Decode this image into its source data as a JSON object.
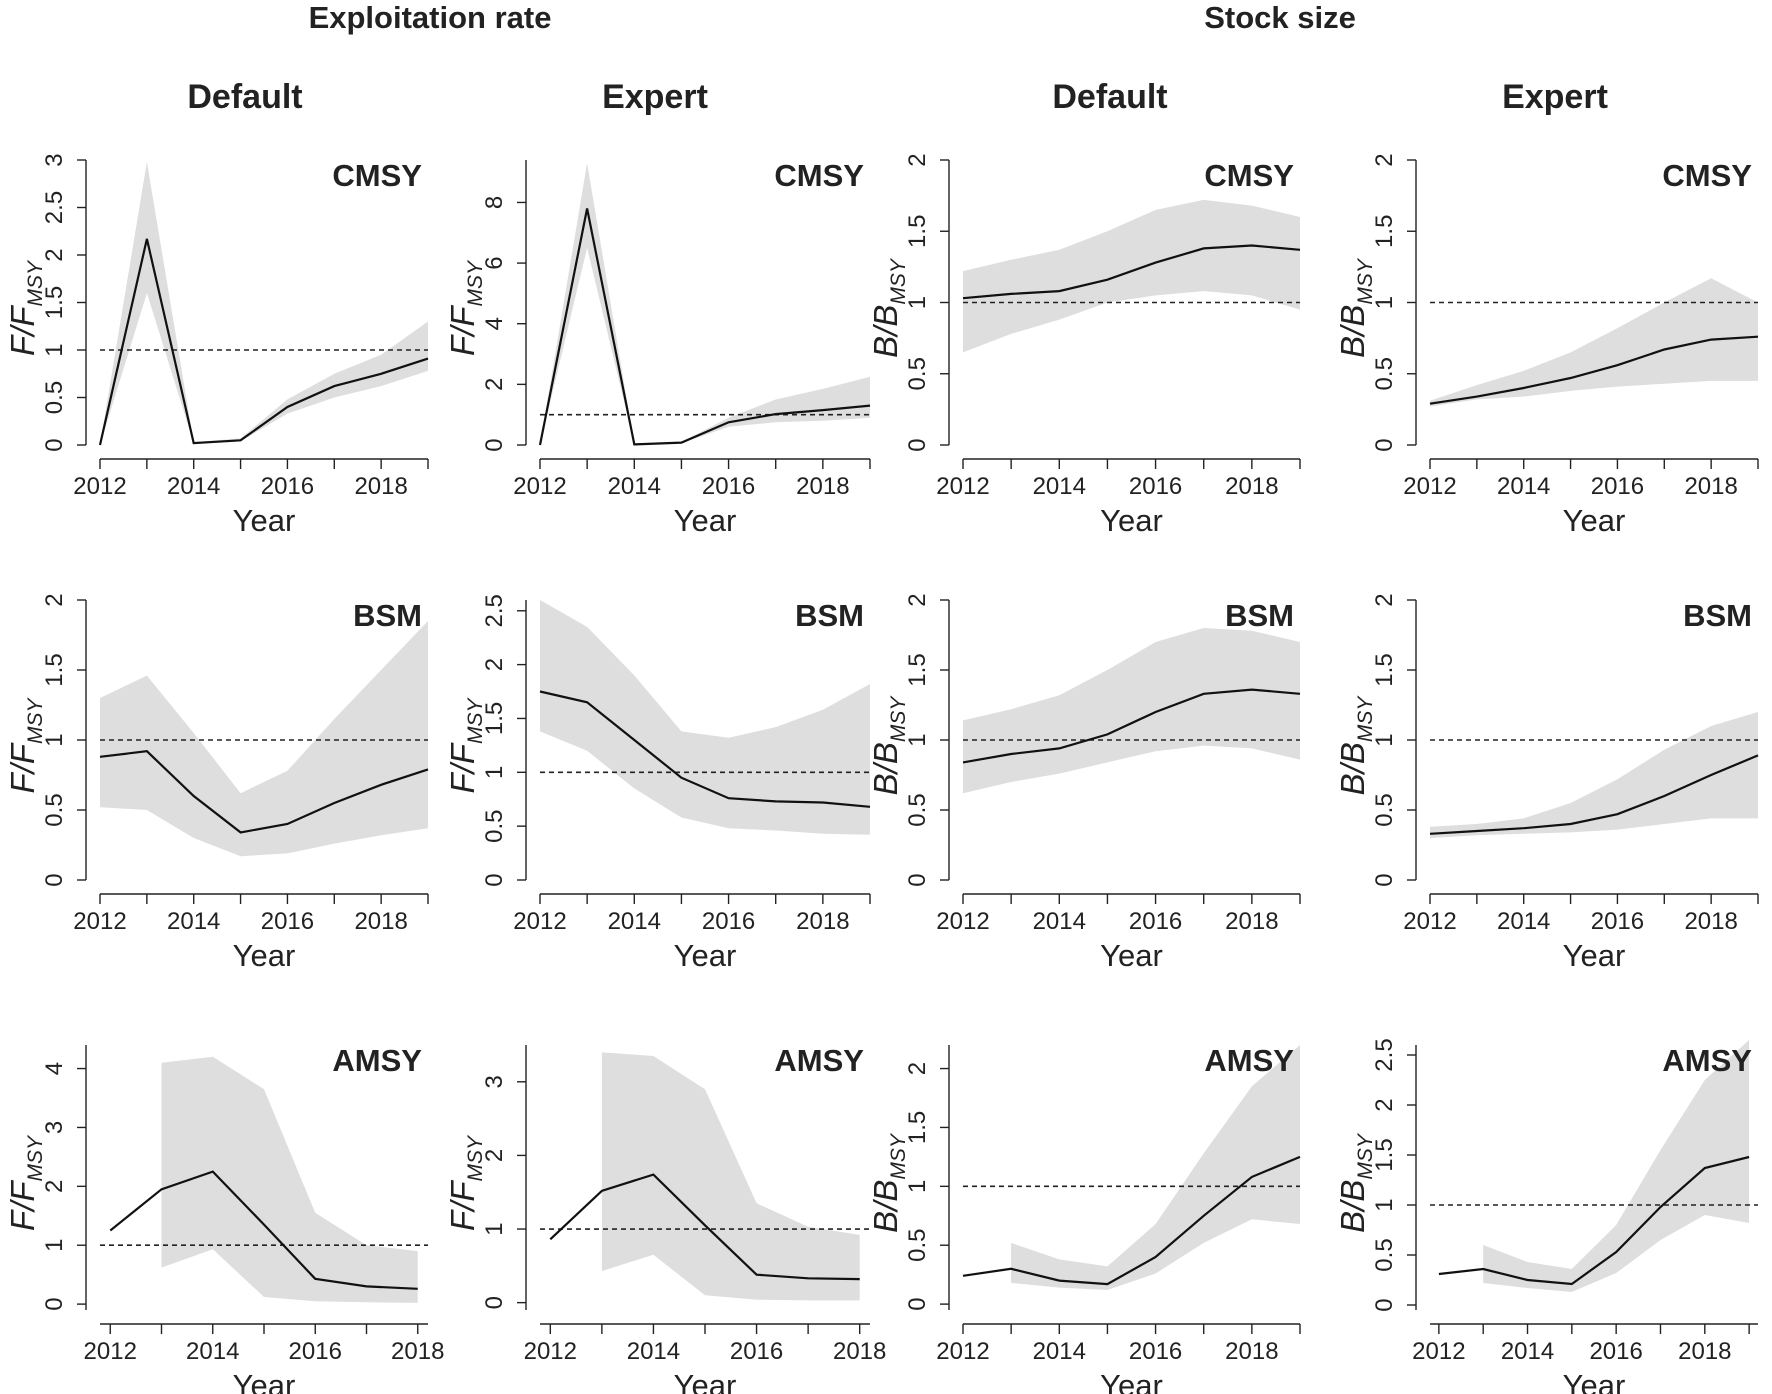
{
  "figure": {
    "section_titles": [
      "Exploitation rate",
      "Stock size"
    ],
    "column_titles": [
      "Default",
      "Expert",
      "Default",
      "Expert"
    ]
  },
  "chart_data": [
    {
      "type": "line",
      "section": "Exploitation rate",
      "column": "Default",
      "model": "CMSY",
      "ylabel": "F/F_MSY",
      "ylabel_main": "F/F",
      "ylabel_sub": "MSY",
      "xlabel": "Year",
      "xlim": [
        2012,
        2019
      ],
      "xticks": [
        2012,
        2014,
        2016,
        2018
      ],
      "ylim": [
        0,
        3
      ],
      "yticks": [
        "0",
        "0.5",
        "1",
        "1.5",
        "2",
        "2.5",
        "3"
      ],
      "reference_line": 1,
      "x": [
        2012,
        2013,
        2014,
        2015,
        2016,
        2017,
        2018,
        2019
      ],
      "median": [
        0.0,
        2.17,
        0.02,
        0.05,
        0.4,
        0.62,
        0.75,
        0.91
      ],
      "lower": [
        0.0,
        1.6,
        0.02,
        0.04,
        0.33,
        0.5,
        0.62,
        0.78
      ],
      "upper": [
        0.0,
        2.98,
        0.03,
        0.07,
        0.48,
        0.75,
        0.95,
        1.3
      ]
    },
    {
      "type": "line",
      "section": "Exploitation rate",
      "column": "Expert",
      "model": "CMSY",
      "ylabel": "F/F_MSY",
      "ylabel_main": "F/F",
      "ylabel_sub": "MSY",
      "xlabel": "Year",
      "xlim": [
        2012,
        2019
      ],
      "xticks": [
        2012,
        2014,
        2016,
        2018
      ],
      "ylim": [
        0,
        9.4
      ],
      "yticks": [
        "0",
        "2",
        "4",
        "6",
        "8"
      ],
      "reference_line": 1,
      "x": [
        2012,
        2013,
        2014,
        2015,
        2016,
        2017,
        2018,
        2019
      ],
      "median": [
        0.0,
        7.8,
        0.02,
        0.08,
        0.75,
        1.02,
        1.15,
        1.3
      ],
      "lower": [
        0.0,
        6.5,
        0.02,
        0.06,
        0.6,
        0.75,
        0.8,
        0.9
      ],
      "upper": [
        0.0,
        9.3,
        0.03,
        0.1,
        0.9,
        1.5,
        1.85,
        2.25
      ]
    },
    {
      "type": "line",
      "section": "Stock size",
      "column": "Default",
      "model": "CMSY",
      "ylabel": "B/B_MSY",
      "ylabel_main": "B/B",
      "ylabel_sub": "MSY",
      "xlabel": "Year",
      "xlim": [
        2012,
        2019
      ],
      "xticks": [
        2012,
        2014,
        2016,
        2018
      ],
      "ylim": [
        0,
        2
      ],
      "yticks": [
        "0",
        "0.5",
        "1",
        "1.5",
        "2"
      ],
      "reference_line": 1,
      "x": [
        2012,
        2013,
        2014,
        2015,
        2016,
        2017,
        2018,
        2019
      ],
      "median": [
        1.03,
        1.06,
        1.08,
        1.16,
        1.28,
        1.38,
        1.4,
        1.37
      ],
      "lower": [
        0.65,
        0.78,
        0.88,
        1.0,
        1.05,
        1.08,
        1.05,
        0.95
      ],
      "upper": [
        1.22,
        1.3,
        1.37,
        1.5,
        1.65,
        1.72,
        1.68,
        1.6
      ]
    },
    {
      "type": "line",
      "section": "Stock size",
      "column": "Expert",
      "model": "CMSY",
      "ylabel": "B/B_MSY",
      "ylabel_main": "B/B",
      "ylabel_sub": "MSY",
      "xlabel": "Year",
      "xlim": [
        2012,
        2019
      ],
      "xticks": [
        2012,
        2014,
        2016,
        2018
      ],
      "ylim": [
        0,
        2
      ],
      "yticks": [
        "0",
        "0.5",
        "1",
        "1.5",
        "2"
      ],
      "reference_line": 1,
      "x": [
        2012,
        2013,
        2014,
        2015,
        2016,
        2017,
        2018,
        2019
      ],
      "median": [
        0.29,
        0.34,
        0.4,
        0.47,
        0.56,
        0.67,
        0.74,
        0.76
      ],
      "lower": [
        0.27,
        0.32,
        0.34,
        0.38,
        0.41,
        0.43,
        0.45,
        0.45
      ],
      "upper": [
        0.31,
        0.42,
        0.52,
        0.65,
        0.82,
        1.0,
        1.17,
        1.0
      ]
    },
    {
      "type": "line",
      "section": "Exploitation rate",
      "column": "Default",
      "model": "BSM",
      "ylabel": "F/F_MSY",
      "ylabel_main": "F/F",
      "ylabel_sub": "MSY",
      "xlabel": "Year",
      "xlim": [
        2012,
        2019
      ],
      "xticks": [
        2012,
        2014,
        2016,
        2018
      ],
      "ylim": [
        0,
        2
      ],
      "yticks": [
        "0",
        "0.5",
        "1",
        "1.5",
        "2"
      ],
      "reference_line": 1,
      "x": [
        2012,
        2013,
        2014,
        2015,
        2016,
        2017,
        2018,
        2019
      ],
      "median": [
        0.88,
        0.92,
        0.6,
        0.34,
        0.4,
        0.55,
        0.68,
        0.79
      ],
      "lower": [
        0.52,
        0.5,
        0.3,
        0.17,
        0.19,
        0.26,
        0.32,
        0.37
      ],
      "upper": [
        1.3,
        1.46,
        1.05,
        0.62,
        0.78,
        1.15,
        1.5,
        1.85
      ]
    },
    {
      "type": "line",
      "section": "Exploitation rate",
      "column": "Expert",
      "model": "BSM",
      "ylabel": "F/F_MSY",
      "ylabel_main": "F/F",
      "ylabel_sub": "MSY",
      "xlabel": "Year",
      "xlim": [
        2012,
        2019
      ],
      "xticks": [
        2012,
        2014,
        2016,
        2018
      ],
      "ylim": [
        0,
        2.6
      ],
      "yticks": [
        "0",
        "0.5",
        "1",
        "1.5",
        "2",
        "2.5"
      ],
      "reference_line": 1,
      "x": [
        2012,
        2013,
        2014,
        2015,
        2016,
        2017,
        2018,
        2019
      ],
      "median": [
        1.75,
        1.65,
        1.3,
        0.95,
        0.76,
        0.73,
        0.72,
        0.68
      ],
      "lower": [
        1.38,
        1.2,
        0.85,
        0.58,
        0.48,
        0.46,
        0.43,
        0.42
      ],
      "upper": [
        2.6,
        2.35,
        1.9,
        1.38,
        1.32,
        1.42,
        1.58,
        1.82
      ]
    },
    {
      "type": "line",
      "section": "Stock size",
      "column": "Default",
      "model": "BSM",
      "ylabel": "B/B_MSY",
      "ylabel_main": "B/B",
      "ylabel_sub": "MSY",
      "xlabel": "Year",
      "xlim": [
        2012,
        2019
      ],
      "xticks": [
        2012,
        2014,
        2016,
        2018
      ],
      "ylim": [
        0,
        2
      ],
      "yticks": [
        "0",
        "0.5",
        "1",
        "1.5",
        "2"
      ],
      "reference_line": 1,
      "x": [
        2012,
        2013,
        2014,
        2015,
        2016,
        2017,
        2018,
        2019
      ],
      "median": [
        0.84,
        0.9,
        0.94,
        1.04,
        1.2,
        1.33,
        1.36,
        1.33
      ],
      "lower": [
        0.62,
        0.7,
        0.76,
        0.84,
        0.92,
        0.96,
        0.94,
        0.86
      ],
      "upper": [
        1.14,
        1.22,
        1.32,
        1.5,
        1.7,
        1.8,
        1.78,
        1.7
      ]
    },
    {
      "type": "line",
      "section": "Stock size",
      "column": "Expert",
      "model": "BSM",
      "ylabel": "B/B_MSY",
      "ylabel_main": "B/B",
      "ylabel_sub": "MSY",
      "xlabel": "Year",
      "xlim": [
        2012,
        2019
      ],
      "xticks": [
        2012,
        2014,
        2016,
        2018
      ],
      "ylim": [
        0,
        2
      ],
      "yticks": [
        "0",
        "0.5",
        "1",
        "1.5",
        "2"
      ],
      "reference_line": 1,
      "x": [
        2012,
        2013,
        2014,
        2015,
        2016,
        2017,
        2018,
        2019
      ],
      "median": [
        0.33,
        0.35,
        0.37,
        0.4,
        0.47,
        0.6,
        0.75,
        0.89
      ],
      "lower": [
        0.3,
        0.32,
        0.33,
        0.34,
        0.36,
        0.4,
        0.44,
        0.44
      ],
      "upper": [
        0.38,
        0.4,
        0.44,
        0.55,
        0.72,
        0.93,
        1.1,
        1.2
      ]
    },
    {
      "type": "line",
      "section": "Exploitation rate",
      "column": "Default",
      "model": "AMSY",
      "ylabel": "F/F_MSY",
      "ylabel_main": "F/F",
      "ylabel_sub": "MSY",
      "xlabel": "Year",
      "xlim": [
        2011.8,
        2018.2
      ],
      "xticks": [
        2012,
        2014,
        2016,
        2018
      ],
      "ylim": [
        -0.1,
        4.4
      ],
      "yticks": [
        "0",
        "1",
        "2",
        "3",
        "4"
      ],
      "reference_line": 1,
      "x": [
        2012,
        2013,
        2014,
        2015,
        2016,
        2017,
        2018
      ],
      "median": [
        1.25,
        1.95,
        2.25,
        1.35,
        0.43,
        0.3,
        0.26
      ],
      "lower": [
        null,
        0.62,
        0.93,
        0.12,
        0.05,
        0.03,
        0.02
      ],
      "upper": [
        null,
        4.1,
        4.2,
        3.65,
        1.55,
        1.0,
        0.9
      ]
    },
    {
      "type": "line",
      "section": "Exploitation rate",
      "column": "Expert",
      "model": "AMSY",
      "ylabel": "F/F_MSY",
      "ylabel_main": "F/F",
      "ylabel_sub": "MSY",
      "xlabel": "Year",
      "xlim": [
        2011.8,
        2018.2
      ],
      "xticks": [
        2012,
        2014,
        2016,
        2018
      ],
      "ylim": [
        -0.1,
        3.5
      ],
      "yticks": [
        "0",
        "1",
        "2",
        "3"
      ],
      "reference_line": 1,
      "x": [
        2012,
        2013,
        2014,
        2015,
        2016,
        2017,
        2018
      ],
      "median": [
        0.86,
        1.52,
        1.74,
        1.05,
        0.38,
        0.33,
        0.32
      ],
      "lower": [
        null,
        0.43,
        0.65,
        0.1,
        0.04,
        0.03,
        0.03
      ],
      "upper": [
        null,
        3.4,
        3.35,
        2.9,
        1.35,
        1.03,
        0.92
      ]
    },
    {
      "type": "line",
      "section": "Stock size",
      "column": "Default",
      "model": "AMSY",
      "ylabel": "B/B_MSY",
      "ylabel_main": "B/B",
      "ylabel_sub": "MSY",
      "xlabel": "Year",
      "xlim": [
        2012,
        2019
      ],
      "xticks": [
        2012,
        2014,
        2016,
        2018
      ],
      "ylim": [
        -0.05,
        2.2
      ],
      "yticks": [
        "0",
        "0.5",
        "1",
        "1.5",
        "2"
      ],
      "reference_line": 1,
      "x": [
        2012,
        2013,
        2014,
        2015,
        2016,
        2017,
        2018,
        2019
      ],
      "median": [
        0.24,
        0.3,
        0.2,
        0.17,
        0.4,
        0.75,
        1.08,
        1.25
      ],
      "lower": [
        null,
        0.18,
        0.14,
        0.12,
        0.26,
        0.52,
        0.72,
        0.68
      ],
      "upper": [
        null,
        0.52,
        0.38,
        0.32,
        0.68,
        1.28,
        1.85,
        2.2
      ]
    },
    {
      "type": "line",
      "section": "Stock size",
      "column": "Expert",
      "model": "AMSY",
      "ylabel": "B/B_MSY",
      "ylabel_main": "B/B",
      "ylabel_sub": "MSY",
      "xlabel": "Year",
      "xlim": [
        2011.8,
        2019.2
      ],
      "xticks": [
        2012,
        2014,
        2016,
        2018
      ],
      "ylim": [
        -0.05,
        2.6
      ],
      "yticks": [
        "0",
        "0.5",
        "1",
        "1.5",
        "2",
        "2.5"
      ],
      "reference_line": 1,
      "x": [
        2012,
        2013,
        2014,
        2015,
        2016,
        2017,
        2018,
        2019
      ],
      "median": [
        0.31,
        0.36,
        0.25,
        0.21,
        0.53,
        0.98,
        1.37,
        1.48
      ],
      "lower": [
        null,
        0.22,
        0.17,
        0.13,
        0.32,
        0.65,
        0.9,
        0.82
      ],
      "upper": [
        null,
        0.6,
        0.43,
        0.36,
        0.8,
        1.55,
        2.25,
        2.65
      ]
    }
  ]
}
